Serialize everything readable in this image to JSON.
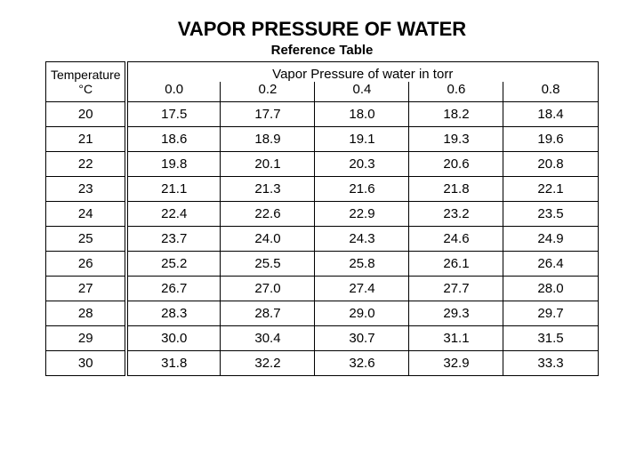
{
  "title": "VAPOR PRESSURE OF WATER",
  "subtitle": "Reference Table",
  "table": {
    "type": "table",
    "temp_header_line1": "Temperature",
    "temp_header_line2": "°C",
    "vp_header": "Vapor Pressure of water in torr",
    "column_increments": [
      "0.0",
      "0.2",
      "0.4",
      "0.6",
      "0.8"
    ],
    "rows": [
      {
        "temp": "20",
        "values": [
          "17.5",
          "17.7",
          "18.0",
          "18.2",
          "18.4"
        ]
      },
      {
        "temp": "21",
        "values": [
          "18.6",
          "18.9",
          "19.1",
          "19.3",
          "19.6"
        ]
      },
      {
        "temp": "22",
        "values": [
          "19.8",
          "20.1",
          "20.3",
          "20.6",
          "20.8"
        ]
      },
      {
        "temp": "23",
        "values": [
          "21.1",
          "21.3",
          "21.6",
          "21.8",
          "22.1"
        ]
      },
      {
        "temp": "24",
        "values": [
          "22.4",
          "22.6",
          "22.9",
          "23.2",
          "23.5"
        ]
      },
      {
        "temp": "25",
        "values": [
          "23.7",
          "24.0",
          "24.3",
          "24.6",
          "24.9"
        ]
      },
      {
        "temp": "26",
        "values": [
          "25.2",
          "25.5",
          "25.8",
          "26.1",
          "26.4"
        ]
      },
      {
        "temp": "27",
        "values": [
          "26.7",
          "27.0",
          "27.4",
          "27.7",
          "28.0"
        ]
      },
      {
        "temp": "28",
        "values": [
          "28.3",
          "28.7",
          "29.0",
          "29.3",
          "29.7"
        ]
      },
      {
        "temp": "29",
        "values": [
          "30.0",
          "30.4",
          "30.7",
          "31.1",
          "31.5"
        ]
      },
      {
        "temp": "30",
        "values": [
          "31.8",
          "32.2",
          "32.6",
          "32.9",
          "33.3"
        ]
      }
    ],
    "border_color": "#000000",
    "background_color": "#ffffff",
    "title_fontsize": 22,
    "subtitle_fontsize": 15,
    "cell_fontsize": 15
  }
}
